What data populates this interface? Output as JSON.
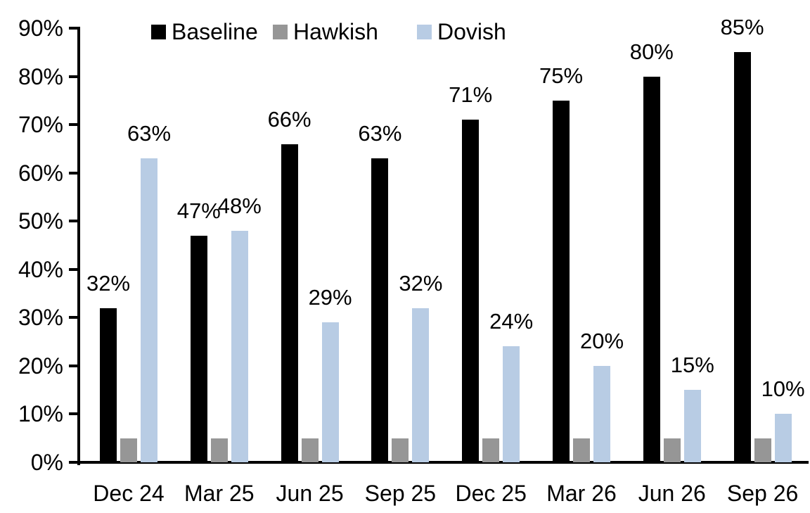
{
  "chart_data": {
    "type": "bar",
    "title": "",
    "xlabel": "",
    "ylabel": "",
    "categories": [
      "Dec 24",
      "Mar 25",
      "Jun 25",
      "Sep 25",
      "Dec 25",
      "Mar 26",
      "Jun 26",
      "Sep 26"
    ],
    "series": [
      {
        "name": "Baseline",
        "color": "#000000",
        "values": [
          32,
          47,
          66,
          63,
          71,
          75,
          80,
          85
        ],
        "data_labels": [
          "32%",
          "47%",
          "66%",
          "63%",
          "71%",
          "75%",
          "80%",
          "85%"
        ]
      },
      {
        "name": "Hawkish",
        "color": "#969696",
        "values": [
          5,
          5,
          5,
          5,
          5,
          5,
          5,
          5
        ],
        "data_labels": []
      },
      {
        "name": "Dovish",
        "color": "#B8CCE4",
        "values": [
          63,
          48,
          29,
          32,
          24,
          20,
          15,
          10
        ],
        "data_labels": [
          "63%",
          "48%",
          "29%",
          "32%",
          "24%",
          "20%",
          "15%",
          "10%"
        ]
      }
    ],
    "ylim": [
      0,
      90
    ],
    "ytick_labels": [
      "0%",
      "10%",
      "20%",
      "30%",
      "40%",
      "50%",
      "60%",
      "70%",
      "80%",
      "90%"
    ],
    "legend_position": "top",
    "grid": false,
    "axis_color": "#000000"
  }
}
